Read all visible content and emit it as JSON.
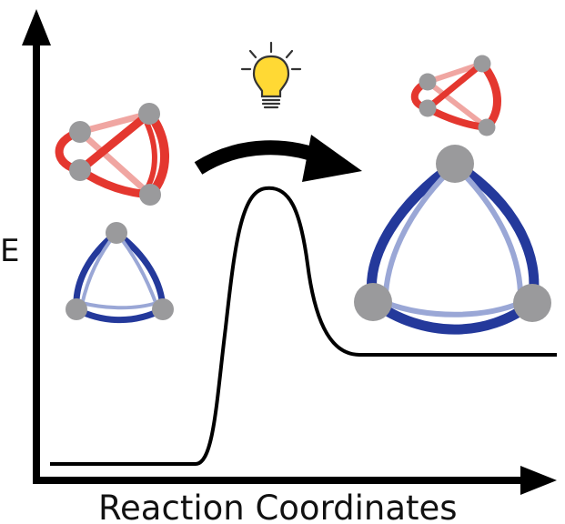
{
  "axes": {
    "y_label": "E",
    "x_label": "Reaction Coordinates"
  },
  "icons": {
    "idea": "lightbulb-icon",
    "transition": "curved-arrow-icon"
  },
  "colors": {
    "axis": "#000000",
    "energy_curve": "#000000",
    "red_strong": "#e4372f",
    "red_light": "#f0a6a2",
    "blue_strong": "#24399b",
    "blue_light": "#9aa7d6",
    "node": "#9a9a9c",
    "bulb": "#ffd934",
    "bulb_outline": "#333333"
  }
}
